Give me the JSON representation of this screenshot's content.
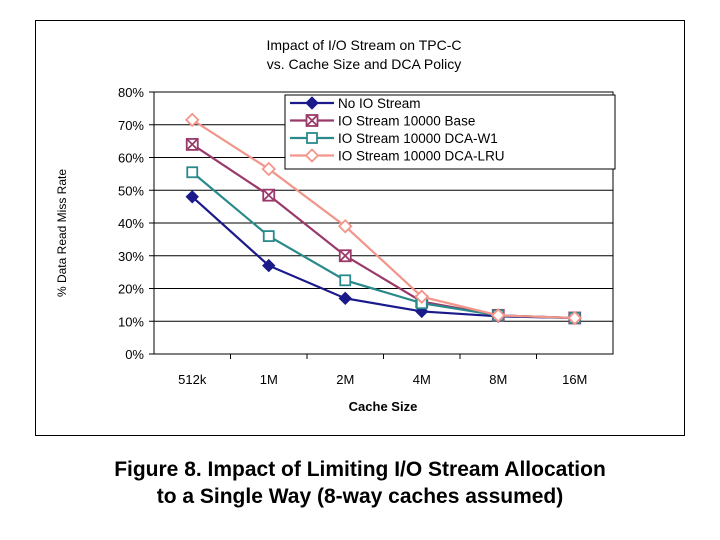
{
  "chart_data": {
    "type": "line",
    "title": [
      "Impact of I/O Stream on TPC-C",
      "vs. Cache Size and DCA Policy"
    ],
    "xlabel": "Cache Size",
    "ylabel": "% Data Read Miss Rate",
    "categories": [
      "512k",
      "1M",
      "2M",
      "4M",
      "8M",
      "16M"
    ],
    "ylim": [
      0,
      80
    ],
    "yticks": [
      "0%",
      "10%",
      "20%",
      "30%",
      "40%",
      "50%",
      "60%",
      "70%",
      "80%"
    ],
    "grid": "horizontal",
    "legend_position": "top-right",
    "series": [
      {
        "name": "No IO Stream",
        "color": "#1a1a8a",
        "marker": "diamond-filled",
        "values": [
          48,
          27,
          17,
          13,
          11.5,
          11
        ]
      },
      {
        "name": "IO Stream 10000 Base",
        "color": "#9a3a6a",
        "marker": "square-x",
        "values": [
          64,
          48.5,
          30,
          16,
          11.8,
          11
        ]
      },
      {
        "name": "IO Stream 10000 DCA-W1",
        "color": "#2a8a8a",
        "marker": "square-open",
        "values": [
          55.5,
          36,
          22.5,
          15.5,
          11.8,
          11
        ]
      },
      {
        "name": "IO Stream 10000 DCA-LRU",
        "color": "#f2958a",
        "marker": "diamond-open",
        "values": [
          71.5,
          56.5,
          39,
          17.5,
          11.8,
          11
        ]
      }
    ]
  },
  "caption": {
    "line1": "Figure 8. Impact of Limiting I/O Stream Allocation",
    "line2": "to a Single Way (8-way caches assumed)"
  }
}
